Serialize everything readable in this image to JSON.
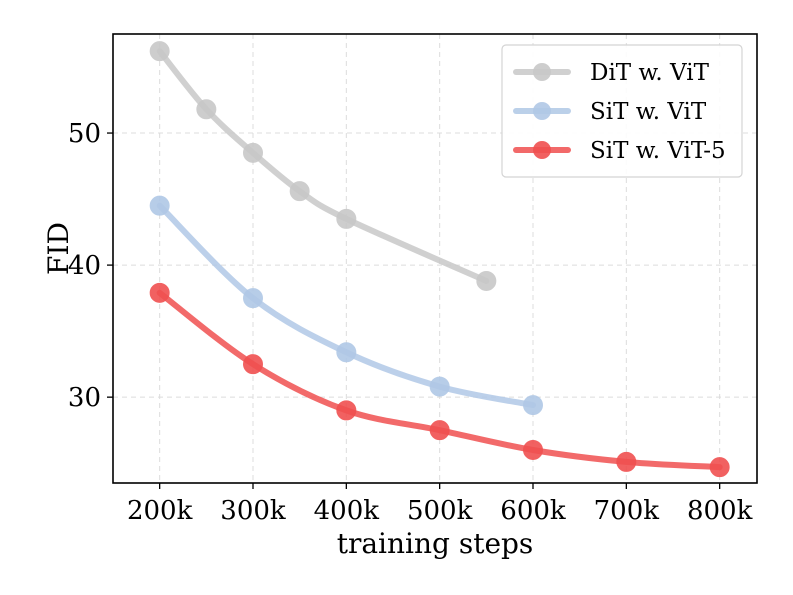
{
  "chart_data": {
    "type": "line",
    "title": "",
    "xlabel": "training steps",
    "ylabel": "FID",
    "x_ticks": [
      200000,
      300000,
      400000,
      500000,
      600000,
      700000,
      800000
    ],
    "x_tick_labels": [
      "200k",
      "300k",
      "400k",
      "500k",
      "600k",
      "700k",
      "800k"
    ],
    "y_ticks": [
      30,
      40,
      50
    ],
    "y_tick_labels": [
      "30",
      "40",
      "50"
    ],
    "xlim": [
      150000,
      840000
    ],
    "ylim": [
      23.5,
      57.5
    ],
    "grid": true,
    "legend_position": "top-right",
    "series": [
      {
        "name": "DiT w. ViT",
        "color": "#c8c8c8",
        "x": [
          200000,
          250000,
          300000,
          350000,
          400000,
          550000
        ],
        "y": [
          56.2,
          51.8,
          48.5,
          45.6,
          43.5,
          38.8
        ]
      },
      {
        "name": "SiT w. ViT",
        "color": "#b0c8e6",
        "x": [
          200000,
          300000,
          400000,
          500000,
          600000
        ],
        "y": [
          44.5,
          37.5,
          33.4,
          30.8,
          29.4
        ]
      },
      {
        "name": "SiT w. ViT-5",
        "color": "#f05050",
        "x": [
          200000,
          300000,
          400000,
          500000,
          600000,
          700000,
          800000
        ],
        "y": [
          37.9,
          32.5,
          29.0,
          27.5,
          26.0,
          25.1,
          24.7
        ]
      }
    ]
  }
}
